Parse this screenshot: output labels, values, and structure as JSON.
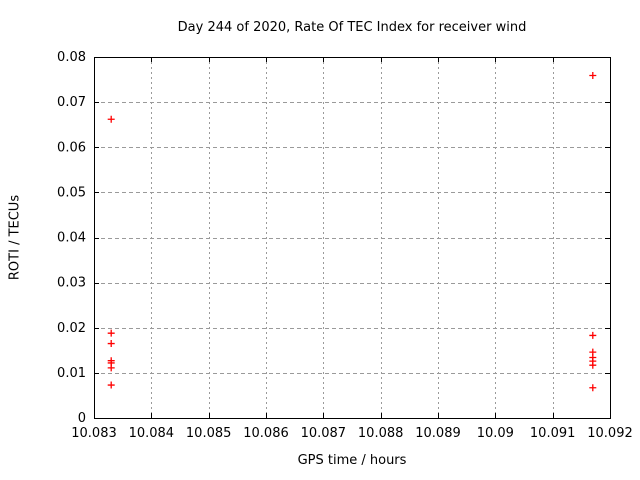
{
  "chart_data": {
    "type": "scatter",
    "title": "Day 244 of 2020, Rate Of TEC Index for receiver wind",
    "xlabel": "GPS time / hours",
    "ylabel": "ROTI / TECUs",
    "xlim": [
      10.083,
      10.092
    ],
    "ylim": [
      0,
      0.08
    ],
    "xticks": {
      "values": [
        10.083,
        10.084,
        10.085,
        10.086,
        10.087,
        10.088,
        10.089,
        10.09,
        10.091,
        10.092
      ],
      "labels": [
        "10.083",
        "10.084",
        "10.085",
        "10.086",
        "10.087",
        "10.088",
        "10.089",
        "10.09",
        "10.091",
        "10.092"
      ]
    },
    "yticks": {
      "values": [
        0,
        0.01,
        0.02,
        0.03,
        0.04,
        0.05,
        0.06,
        0.07,
        0.08
      ],
      "labels": [
        "0",
        "0.01",
        "0.02",
        "0.03",
        "0.04",
        "0.05",
        "0.06",
        "0.07",
        "0.08"
      ]
    },
    "grid": true,
    "legend": "none",
    "colors": {
      "marker": "#ff0000",
      "grid": "#9a9a9a",
      "axis": "#000000",
      "background": "#ffffff"
    },
    "marker": {
      "shape": "plus",
      "size": 7
    },
    "series": [
      {
        "name": "wind",
        "points": [
          [
            10.0833,
            0.0662
          ],
          [
            10.0833,
            0.0188
          ],
          [
            10.0833,
            0.0165
          ],
          [
            10.0833,
            0.0127
          ],
          [
            10.0833,
            0.0122
          ],
          [
            10.0833,
            0.0111
          ],
          [
            10.0833,
            0.0073
          ],
          [
            10.0917,
            0.0759
          ],
          [
            10.0917,
            0.0183
          ],
          [
            10.0917,
            0.0146
          ],
          [
            10.0917,
            0.0134
          ],
          [
            10.0917,
            0.0126
          ],
          [
            10.0917,
            0.0117
          ],
          [
            10.0917,
            0.0067
          ]
        ]
      }
    ]
  }
}
